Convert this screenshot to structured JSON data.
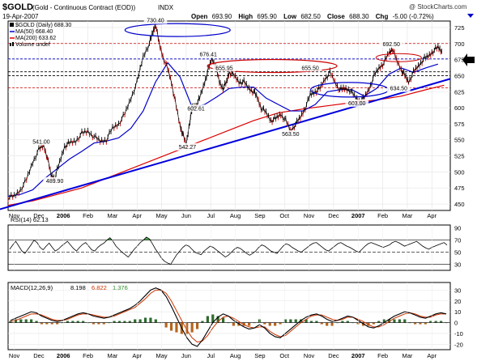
{
  "header": {
    "symbol": "$GOLD",
    "name": "(Gold - Continuous Contract (EOD))",
    "exchange": "INDX",
    "watermark": "@ StockCharts.com",
    "date": "19-Apr-2007",
    "open_label": "Open",
    "open": "693.90",
    "high_label": "High",
    "high": "695.90",
    "low_label": "Low",
    "low": "682.50",
    "close_label": "Close",
    "close": "688.30",
    "chg_label": "Chg",
    "chg": "-5.00 (-0.72%)"
  },
  "colors": {
    "price": "#000000",
    "ma50": "#0000cc",
    "ma200": "#dd0000",
    "trendline": "#0000dd",
    "ellipse_blue": "#0000cc",
    "ellipse_red": "#cc0000",
    "hline_red": "#cc0000",
    "hline_black": "#000000",
    "rsi_fill": "#2e8b2e",
    "macd_signal": "#cc3300",
    "hist": "#2e6b2e"
  },
  "chart_data": [
    {
      "type": "line",
      "panel": "price",
      "legend": [
        "$GOLD (Daily) 688.30",
        "MA(50) 668.40",
        "MA(200) 633.62",
        "Volume undef"
      ],
      "y_ticks": [
        450,
        475,
        500,
        525,
        550,
        575,
        600,
        625,
        650,
        675,
        700,
        725
      ],
      "ylim": [
        440,
        735
      ],
      "x_ticks": [
        "Nov",
        "Dec",
        "2006",
        "Feb",
        "Mar",
        "Apr",
        "May",
        "Jun",
        "Jul",
        "Aug",
        "Sep",
        "Oct",
        "Nov",
        "Dec",
        "2007",
        "Feb",
        "Mar",
        "Apr"
      ],
      "price_labels": [
        "730.40",
        "676.41",
        "655.95",
        "655.50",
        "692.50",
        "541.00",
        "489.90",
        "542.27",
        "602.61",
        "563.50",
        "603.00",
        "634.50"
      ],
      "series": [
        {
          "name": "$GOLD (Daily)",
          "points": [
            [
              0,
              460
            ],
            [
              0.5,
              462
            ],
            [
              1,
              472
            ],
            [
              1.5,
              488
            ],
            [
              2,
              515
            ],
            [
              2.5,
              535
            ],
            [
              2.9,
              541
            ],
            [
              3.2,
              522
            ],
            [
              3.5,
              495
            ],
            [
              3.8,
              490
            ],
            [
              4.2,
              515
            ],
            [
              4.6,
              540
            ],
            [
              5,
              545
            ],
            [
              5.5,
              548
            ],
            [
              6,
              560
            ],
            [
              6.5,
              563
            ],
            [
              7,
              555
            ],
            [
              7.5,
              548
            ],
            [
              8,
              550
            ],
            [
              8.5,
              568
            ],
            [
              9,
              575
            ],
            [
              9.5,
              590
            ],
            [
              10,
              615
            ],
            [
              10.5,
              640
            ],
            [
              11,
              680
            ],
            [
              11.5,
              700
            ],
            [
              11.8,
              718
            ],
            [
              12,
              730
            ],
            [
              12.3,
              700
            ],
            [
              12.6,
              680
            ],
            [
              13,
              660
            ],
            [
              13.3,
              640
            ],
            [
              13.6,
              610
            ],
            [
              14,
              572
            ],
            [
              14.2,
              560
            ],
            [
              14.5,
              542
            ],
            [
              14.8,
              580
            ],
            [
              15,
              600
            ],
            [
              15.3,
              603
            ],
            [
              15.6,
              615
            ],
            [
              16,
              640
            ],
            [
              16.3,
              660
            ],
            [
              16.6,
              676
            ],
            [
              16.9,
              665
            ],
            [
              17.2,
              640
            ],
            [
              17.5,
              630
            ],
            [
              17.8,
              640
            ],
            [
              18,
              656
            ],
            [
              18.4,
              650
            ],
            [
              18.8,
              640
            ],
            [
              19.2,
              640
            ],
            [
              19.6,
              630
            ],
            [
              20,
              625
            ],
            [
              20.3,
              615
            ],
            [
              20.6,
              600
            ],
            [
              21,
              592
            ],
            [
              21.4,
              580
            ],
            [
              21.8,
              583
            ],
            [
              22.2,
              590
            ],
            [
              22.6,
              580
            ],
            [
              23,
              564
            ],
            [
              23.4,
              574
            ],
            [
              23.8,
              585
            ],
            [
              24.2,
              600
            ],
            [
              24.6,
              620
            ],
            [
              25,
              625
            ],
            [
              25.4,
              630
            ],
            [
              25.8,
              645
            ],
            [
              26.2,
              655
            ],
            [
              26.6,
              640
            ],
            [
              27,
              628
            ],
            [
              27.4,
              630
            ],
            [
              27.8,
              628
            ],
            [
              28.2,
              618
            ],
            [
              28.6,
              610
            ],
            [
              29,
              615
            ],
            [
              29.4,
              630
            ],
            [
              29.8,
              650
            ],
            [
              30.2,
              662
            ],
            [
              30.6,
              670
            ],
            [
              31,
              685
            ],
            [
              31.3,
              692
            ],
            [
              31.6,
              675
            ],
            [
              32,
              660
            ],
            [
              32.3,
              650
            ],
            [
              32.6,
              640
            ],
            [
              33,
              655
            ],
            [
              33.4,
              665
            ],
            [
              33.8,
              675
            ],
            [
              34.2,
              680
            ],
            [
              34.6,
              688
            ],
            [
              35,
              694
            ],
            [
              35.3,
              688
            ]
          ]
        },
        {
          "name": "MA(50)",
          "points": [
            [
              0,
              462
            ],
            [
              1,
              465
            ],
            [
              2,
              472
            ],
            [
              3,
              490
            ],
            [
              4,
              505
            ],
            [
              5,
              520
            ],
            [
              6,
              532
            ],
            [
              7,
              545
            ],
            [
              8,
              548
            ],
            [
              9,
              553
            ],
            [
              10,
              568
            ],
            [
              11,
              595
            ],
            [
              12,
              640
            ],
            [
              13,
              670
            ],
            [
              14,
              648
            ],
            [
              15,
              600
            ],
            [
              16,
              605
            ],
            [
              17,
              617
            ],
            [
              18,
              630
            ],
            [
              19,
              632
            ],
            [
              20,
              632
            ],
            [
              21,
              615
            ],
            [
              22,
              605
            ],
            [
              23,
              595
            ],
            [
              24,
              595
            ],
            [
              25,
              605
            ],
            [
              26,
              625
            ],
            [
              27,
              628
            ],
            [
              28,
              628
            ],
            [
              29,
              618
            ],
            [
              30,
              630
            ],
            [
              31,
              652
            ],
            [
              32,
              662
            ],
            [
              33,
              655
            ],
            [
              34,
              662
            ],
            [
              35,
              668
            ]
          ]
        },
        {
          "name": "MA(200)",
          "points": [
            [
              0,
              448
            ],
            [
              2,
              455
            ],
            [
              4,
              465
            ],
            [
              6,
              475
            ],
            [
              8,
              490
            ],
            [
              10,
              505
            ],
            [
              12,
              520
            ],
            [
              14,
              535
            ],
            [
              16,
              550
            ],
            [
              18,
              565
            ],
            [
              20,
              580
            ],
            [
              22,
              592
            ],
            [
              24,
              598
            ],
            [
              26,
              603
            ],
            [
              28,
              608
            ],
            [
              30,
              612
            ],
            [
              32,
              618
            ],
            [
              34,
              628
            ],
            [
              35.5,
              635
            ]
          ]
        }
      ],
      "annotations": {
        "trendline": [
          [
            -1,
            440
          ],
          [
            36,
            645
          ]
        ],
        "horizontal_lines": [
          700,
          676,
          656,
          650,
          631
        ],
        "ellipses": 4
      }
    },
    {
      "type": "line",
      "panel": "rsi",
      "legend": [
        "RSI(14) 62.13"
      ],
      "y_ticks": [
        30,
        50,
        70,
        90
      ],
      "ylim": [
        20,
        95
      ],
      "series": [
        {
          "name": "RSI(14)",
          "values": [
            55,
            62,
            68,
            60,
            52,
            48,
            55,
            62,
            70,
            66,
            58,
            54,
            60,
            65,
            58,
            52,
            55,
            60,
            64,
            68,
            62,
            56,
            52,
            58,
            63,
            66,
            60,
            54,
            52,
            58,
            62,
            65,
            70,
            74,
            68,
            60,
            55,
            50,
            46,
            42,
            48,
            55,
            60,
            66,
            70,
            75,
            72,
            64,
            55,
            48,
            40,
            35,
            32,
            30,
            38,
            46,
            52,
            58,
            62,
            60,
            55,
            50,
            48,
            46,
            52,
            56,
            60,
            58,
            54,
            50,
            46,
            42,
            45,
            50,
            55,
            58,
            56,
            52,
            48,
            45,
            48,
            52,
            58,
            62,
            60,
            56,
            52,
            50,
            48,
            54,
            60,
            64,
            62,
            58,
            55,
            52,
            50,
            54,
            58,
            62,
            65,
            66,
            62,
            58,
            54,
            52,
            56,
            60,
            64,
            66,
            63,
            60,
            58,
            55,
            52,
            50,
            55,
            60,
            64,
            66,
            64,
            62,
            60,
            58,
            60,
            62,
            66,
            68,
            66,
            63,
            60,
            62,
            64,
            66,
            68,
            64,
            60,
            57,
            55,
            58,
            60,
            62,
            64,
            66,
            62
          ]
        }
      ]
    },
    {
      "type": "line",
      "panel": "macd",
      "legend": [
        "MACD(12,26,9)",
        "8.198",
        "6.822",
        "1.376"
      ],
      "y_ticks": [
        -20,
        -10,
        0,
        10,
        20,
        30
      ],
      "ylim": [
        -25,
        37
      ],
      "series": [
        {
          "name": "MACD",
          "values": [
            2,
            4,
            6,
            8,
            10,
            9,
            6,
            4,
            2,
            1,
            2,
            4,
            6,
            8,
            9,
            8,
            6,
            5,
            4,
            5,
            7,
            9,
            11,
            13,
            16,
            20,
            25,
            30,
            32,
            30,
            24,
            15,
            5,
            -5,
            -14,
            -20,
            -22,
            -16,
            -8,
            0,
            5,
            8,
            6,
            2,
            -1,
            -4,
            -6,
            -5,
            -2,
            -5,
            -10,
            -13,
            -14,
            -10,
            -6,
            -2,
            2,
            5,
            7,
            8,
            6,
            3,
            1,
            2,
            4,
            6,
            5,
            2,
            -1,
            -4,
            -5,
            -3,
            0,
            3,
            6,
            8,
            10,
            9,
            7,
            5,
            4,
            6,
            8,
            9,
            8
          ]
        },
        {
          "name": "Signal",
          "values": [
            1,
            2,
            4,
            6,
            8,
            8,
            7,
            5,
            3,
            2,
            2,
            3,
            5,
            7,
            8,
            8,
            7,
            6,
            5,
            5,
            6,
            8,
            10,
            12,
            14,
            18,
            22,
            27,
            30,
            30,
            27,
            20,
            11,
            2,
            -7,
            -14,
            -18,
            -17,
            -12,
            -5,
            1,
            5,
            6,
            4,
            1,
            -2,
            -4,
            -5,
            -4,
            -4,
            -8,
            -11,
            -13,
            -12,
            -8,
            -4,
            0,
            3,
            6,
            7,
            7,
            5,
            3,
            2,
            3,
            5,
            5,
            3,
            1,
            -2,
            -4,
            -4,
            -2,
            1,
            4,
            6,
            8,
            9,
            8,
            6,
            5,
            5,
            7,
            8,
            8
          ]
        }
      ]
    }
  ]
}
